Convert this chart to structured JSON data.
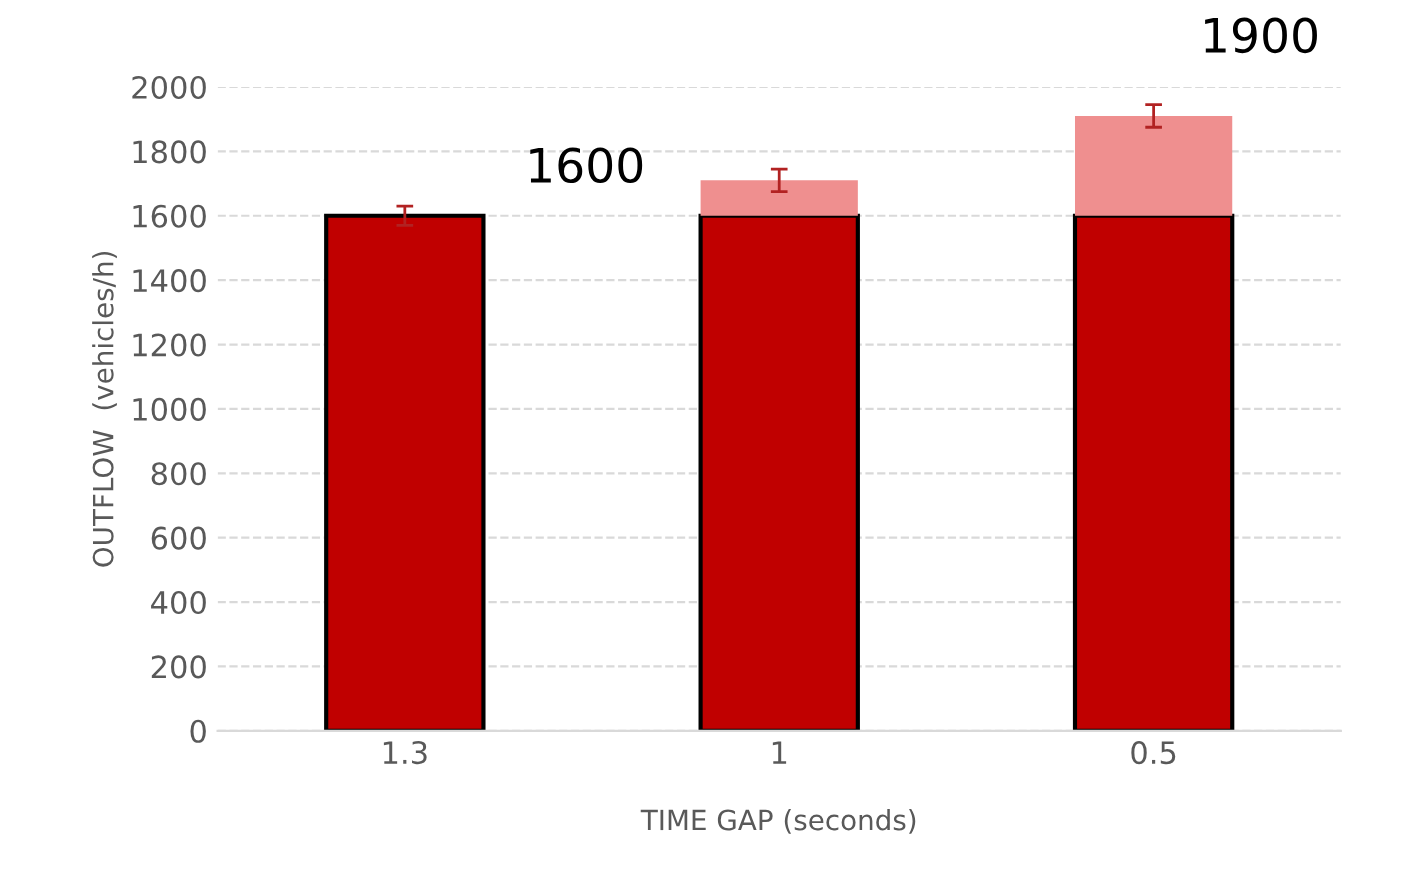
{
  "chart_data": {
    "type": "bar",
    "stacked": true,
    "xlabel": "TIME GAP (seconds)",
    "ylabel": "OUTFLOW  (vehicles/h)",
    "categories": [
      "1.3",
      "1",
      "0.5"
    ],
    "series": [
      {
        "color": "#c00000",
        "values": [
          1600,
          1600,
          1600
        ]
      },
      {
        "color": "#ef8f8f",
        "values": [
          0,
          110,
          310
        ],
        "errors": [
          30,
          35,
          35
        ]
      }
    ],
    "ylim": [
      0,
      2000
    ],
    "yticks": [
      0,
      200,
      400,
      600,
      800,
      1000,
      1200,
      1400,
      1600,
      1800,
      2000
    ],
    "grid": "y",
    "annotations": [
      {
        "text": "1600",
        "x": "1.3",
        "y": 1600
      },
      {
        "text": "1900",
        "x": "0.5",
        "y": 1900
      }
    ]
  }
}
